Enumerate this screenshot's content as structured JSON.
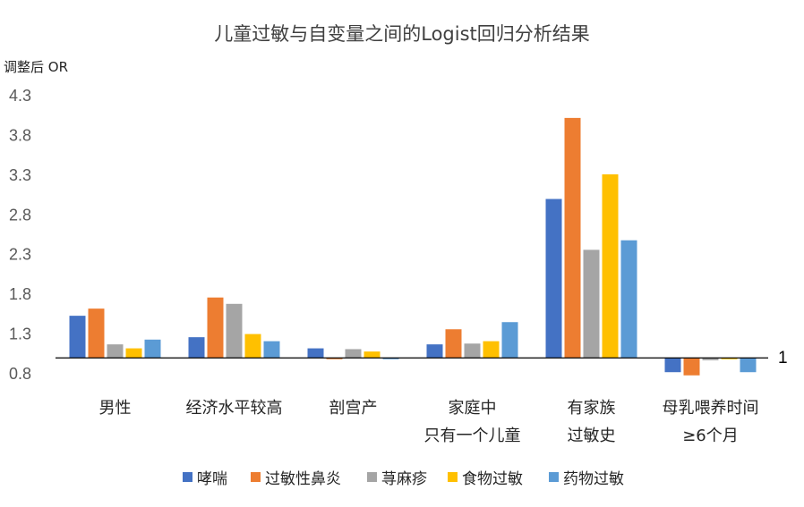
{
  "chart_data": {
    "type": "bar",
    "title": "儿童过敏与自变量之间的Logist回归分析结果",
    "ylabel": "调整后 OR",
    "xlabel": "",
    "ylim": [
      0.8,
      4.3
    ],
    "baseline": 1,
    "baseline_label": "1",
    "yticks": [
      "4.3",
      "3.8",
      "3.3",
      "2.8",
      "2.3",
      "1.8",
      "1.3",
      "0.8"
    ],
    "categories": [
      [
        "男性"
      ],
      [
        "经济水平较高"
      ],
      [
        "剖宫产"
      ],
      [
        "家庭中",
        "只有一个儿童"
      ],
      [
        "有家族",
        "过敏史"
      ],
      [
        "母乳喂养时间",
        "≥6个月"
      ]
    ],
    "series": [
      {
        "name": "哮喘",
        "color": "#4472C4",
        "values": [
          1.53,
          1.26,
          1.12,
          1.17,
          3.0,
          0.82
        ]
      },
      {
        "name": "过敏性鼻炎",
        "color": "#ED7D31",
        "values": [
          1.62,
          1.76,
          1.0,
          1.36,
          4.02,
          0.78
        ]
      },
      {
        "name": "荨麻疹",
        "color": "#A5A5A5",
        "values": [
          1.17,
          1.68,
          1.11,
          1.18,
          2.36,
          0.97
        ]
      },
      {
        "name": "食物过敏",
        "color": "#FFC000",
        "values": [
          1.12,
          1.3,
          1.08,
          1.21,
          3.31,
          0.99
        ]
      },
      {
        "name": "药物过敏",
        "color": "#5B9BD5",
        "values": [
          1.23,
          1.21,
          0.99,
          1.45,
          2.48,
          0.82
        ]
      }
    ]
  }
}
